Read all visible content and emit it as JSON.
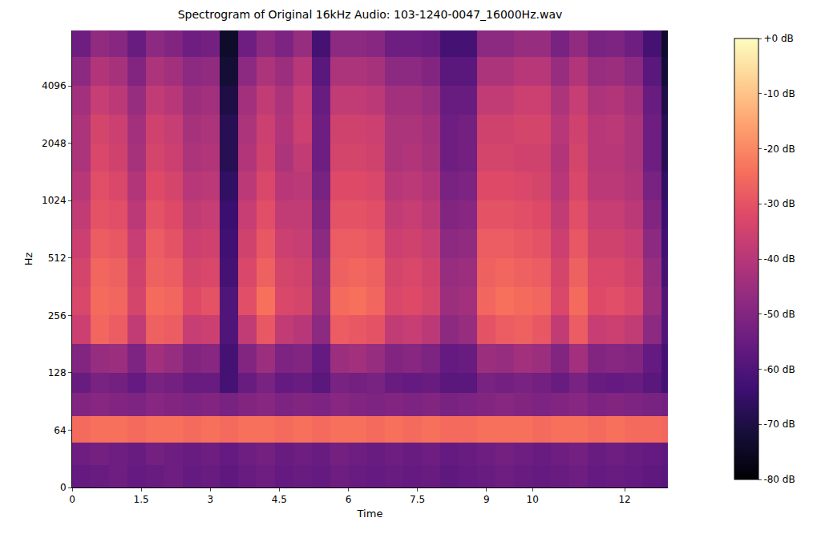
{
  "chart_data": {
    "type": "heatmap",
    "title": "Spectrogram of Original 16kHz Audio: 103-1240-0047_16000Hz.wav",
    "x_label": "Time",
    "y_label": "Hz",
    "log": "y",
    "xlim": [
      0,
      12.94
    ],
    "xticks": [
      0,
      1.5,
      3,
      4.5,
      6,
      7.5,
      9,
      10,
      12
    ],
    "ylim": [
      0,
      8000
    ],
    "yticks": [
      0,
      64,
      128,
      256,
      512,
      1024,
      2048,
      4096
    ],
    "x": [
      0,
      0.4,
      0.8,
      1.2,
      1.6,
      2.0,
      2.4,
      2.8,
      3.2,
      3.6,
      4.0,
      4.4,
      4.8,
      5.2,
      5.6,
      6.0,
      6.4,
      6.8,
      7.2,
      7.6,
      8.0,
      8.4,
      8.8,
      9.2,
      9.6,
      10.0,
      10.4,
      10.8,
      11.2,
      11.6,
      12.0,
      12.4,
      12.8,
      12.94
    ],
    "y": [
      0,
      25,
      50,
      76,
      100,
      128,
      181,
      256,
      362,
      512,
      724,
      1024,
      1448,
      2048,
      2896,
      4096,
      5793,
      8000
    ],
    "z": [
      [
        -56,
        -55,
        -54,
        -56,
        -55,
        -54,
        -56,
        -55,
        -57,
        -55,
        -54,
        -56,
        -55,
        -56,
        -54,
        -55,
        -56,
        -55,
        -56,
        -55,
        -57,
        -56,
        -55,
        -54,
        -55,
        -56,
        -55,
        -54,
        -56,
        -55,
        -56,
        -57,
        -58
      ],
      [
        -54,
        -53,
        -54,
        -55,
        -53,
        -54,
        -55,
        -54,
        -56,
        -54,
        -53,
        -55,
        -54,
        -55,
        -53,
        -54,
        -55,
        -54,
        -55,
        -54,
        -56,
        -55,
        -54,
        -53,
        -54,
        -55,
        -54,
        -53,
        -55,
        -54,
        -55,
        -56,
        -57
      ],
      [
        -25,
        -24,
        -24,
        -25,
        -24,
        -24,
        -25,
        -24,
        -25,
        -24,
        -24,
        -25,
        -24,
        -25,
        -24,
        -24,
        -25,
        -24,
        -25,
        -24,
        -25,
        -25,
        -24,
        -24,
        -24,
        -25,
        -24,
        -24,
        -25,
        -24,
        -25,
        -25,
        -26
      ],
      [
        -50,
        -49,
        -50,
        -51,
        -49,
        -50,
        -51,
        -50,
        -52,
        -50,
        -49,
        -51,
        -50,
        -51,
        -49,
        -50,
        -51,
        -50,
        -51,
        -50,
        -52,
        -51,
        -50,
        -49,
        -50,
        -51,
        -50,
        -49,
        -51,
        -50,
        -51,
        -52,
        -53
      ],
      [
        -55,
        -52,
        -53,
        -56,
        -52,
        -53,
        -55,
        -55,
        -62,
        -55,
        -52,
        -56,
        -55,
        -58,
        -52,
        -53,
        -52,
        -55,
        -56,
        -55,
        -58,
        -58,
        -52,
        -53,
        -52,
        -53,
        -55,
        -52,
        -55,
        -56,
        -55,
        -58,
        -62
      ],
      [
        -50,
        -46,
        -45,
        -51,
        -44,
        -46,
        -50,
        -49,
        -62,
        -50,
        -45,
        -51,
        -50,
        -56,
        -45,
        -44,
        -46,
        -50,
        -49,
        -51,
        -56,
        -55,
        -45,
        -46,
        -44,
        -45,
        -50,
        -44,
        -50,
        -49,
        -50,
        -56,
        -62
      ],
      [
        -36,
        -26,
        -28,
        -38,
        -27,
        -28,
        -37,
        -36,
        -60,
        -38,
        -29,
        -38,
        -40,
        -48,
        -28,
        -29,
        -30,
        -38,
        -37,
        -39,
        -48,
        -46,
        -30,
        -28,
        -27,
        -29,
        -38,
        -28,
        -37,
        -36,
        -38,
        -48,
        -60
      ],
      [
        -33,
        -25,
        -26,
        -34,
        -25,
        -26,
        -32,
        -30,
        -60,
        -31,
        -24,
        -33,
        -34,
        -45,
        -25,
        -24,
        -26,
        -33,
        -32,
        -34,
        -45,
        -44,
        -26,
        -24,
        -25,
        -26,
        -33,
        -25,
        -32,
        -31,
        -33,
        -45,
        -60
      ],
      [
        -34,
        -26,
        -27,
        -35,
        -27,
        -28,
        -34,
        -33,
        -62,
        -33,
        -27,
        -34,
        -35,
        -46,
        -27,
        -26,
        -27,
        -34,
        -33,
        -35,
        -46,
        -45,
        -27,
        -26,
        -27,
        -28,
        -34,
        -27,
        -33,
        -33,
        -35,
        -46,
        -62
      ],
      [
        -36,
        -28,
        -29,
        -37,
        -28,
        -30,
        -36,
        -35,
        -63,
        -35,
        -29,
        -36,
        -37,
        -48,
        -28,
        -28,
        -29,
        -36,
        -35,
        -37,
        -48,
        -47,
        -28,
        -28,
        -29,
        -30,
        -36,
        -29,
        -35,
        -35,
        -37,
        -48,
        -63
      ],
      [
        -38,
        -30,
        -31,
        -39,
        -30,
        -32,
        -38,
        -37,
        -64,
        -37,
        -31,
        -38,
        -38,
        -50,
        -30,
        -30,
        -31,
        -38,
        -37,
        -39,
        -50,
        -49,
        -30,
        -30,
        -31,
        -32,
        -38,
        -31,
        -37,
        -37,
        -39,
        -50,
        -64
      ],
      [
        -40,
        -31,
        -33,
        -41,
        -32,
        -34,
        -40,
        -39,
        -66,
        -39,
        -33,
        -40,
        -39,
        -52,
        -32,
        -32,
        -33,
        -40,
        -39,
        -41,
        -52,
        -51,
        -32,
        -32,
        -33,
        -34,
        -40,
        -33,
        -39,
        -39,
        -41,
        -52,
        -66
      ],
      [
        -42,
        -33,
        -35,
        -43,
        -34,
        -36,
        -42,
        -41,
        -68,
        -41,
        -35,
        -42,
        -38,
        -54,
        -34,
        -34,
        -35,
        -42,
        -41,
        -43,
        -54,
        -53,
        -34,
        -34,
        -35,
        -35,
        -41,
        -34,
        -40,
        -40,
        -42,
        -54,
        -68
      ],
      [
        -42,
        -34,
        -36,
        -44,
        -35,
        -37,
        -43,
        -42,
        -68,
        -42,
        -36,
        -41,
        -36,
        -54,
        -35,
        -35,
        -36,
        -42,
        -42,
        -44,
        -54,
        -53,
        -35,
        -35,
        -34,
        -34,
        -40,
        -35,
        -40,
        -39,
        -42,
        -54,
        -68
      ],
      [
        -44,
        -37,
        -39,
        -46,
        -38,
        -40,
        -45,
        -44,
        -70,
        -44,
        -38,
        -42,
        -37,
        -55,
        -38,
        -38,
        -39,
        -44,
        -44,
        -46,
        -55,
        -55,
        -38,
        -38,
        -36,
        -36,
        -42,
        -37,
        -42,
        -41,
        -44,
        -55,
        -70
      ],
      [
        -48,
        -41,
        -43,
        -50,
        -42,
        -44,
        -48,
        -47,
        -72,
        -48,
        -42,
        -45,
        -40,
        -58,
        -42,
        -42,
        -43,
        -48,
        -48,
        -50,
        -58,
        -58,
        -42,
        -42,
        -40,
        -40,
        -46,
        -41,
        -46,
        -45,
        -48,
        -58,
        -72
      ],
      [
        -54,
        -47,
        -49,
        -55,
        -48,
        -50,
        -54,
        -53,
        -74,
        -54,
        -48,
        -51,
        -46,
        -62,
        -48,
        -48,
        -49,
        -54,
        -54,
        -55,
        -62,
        -62,
        -48,
        -48,
        -46,
        -46,
        -52,
        -47,
        -52,
        -51,
        -54,
        -62,
        -74
      ]
    ],
    "zlim": [
      -80,
      0
    ],
    "zticks": [
      {
        "value": -80,
        "label": "-80 dB"
      },
      {
        "value": -70,
        "label": "-70 dB"
      },
      {
        "value": -60,
        "label": "-60 dB"
      },
      {
        "value": -50,
        "label": "-50 dB"
      },
      {
        "value": -40,
        "label": "-40 dB"
      },
      {
        "value": -30,
        "label": "-30 dB"
      },
      {
        "value": -20,
        "label": "-20 dB"
      },
      {
        "value": -10,
        "label": "-10 dB"
      },
      {
        "value": 0,
        "label": "+0 dB"
      }
    ]
  }
}
